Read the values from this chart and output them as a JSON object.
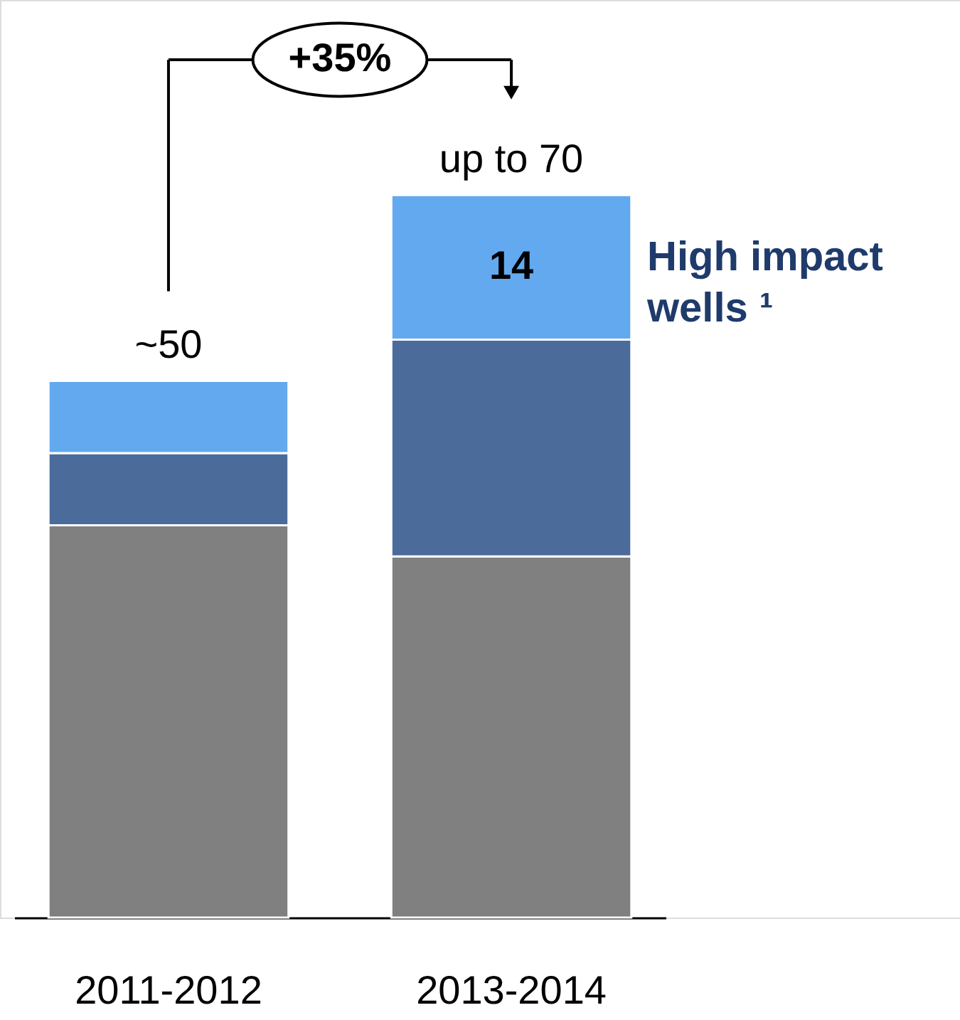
{
  "chart_data": {
    "type": "bar",
    "stacked": true,
    "categories": [
      "2011-2012",
      "2013-2014"
    ],
    "series": [
      {
        "color": "#808080",
        "values": [
          38,
          35
        ]
      },
      {
        "color": "#4b6b9b",
        "values": [
          7,
          21
        ]
      },
      {
        "name": "High impact wells ¹",
        "color": "#63a9f0",
        "values": [
          7,
          14
        ],
        "value_labels": [
          null,
          "14"
        ]
      }
    ],
    "totals": [
      "~50",
      "up to 70"
    ],
    "annotations": [
      "+35%"
    ]
  }
}
